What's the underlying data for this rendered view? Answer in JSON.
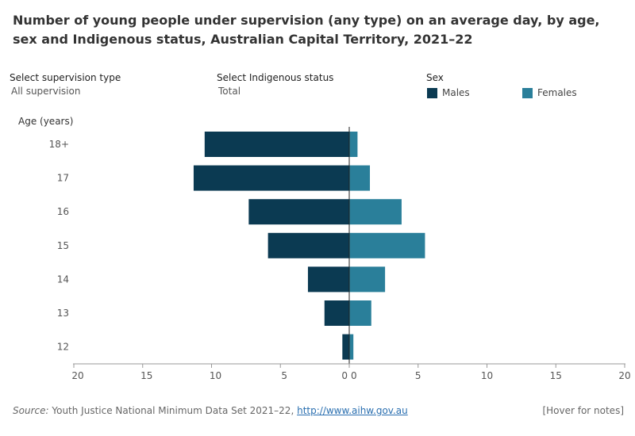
{
  "title": "Number of young people under supervision (any type) on an average day, by age, sex and Indigenous status, Australian Capital Territory, 2021–22",
  "filters": {
    "supervision": {
      "label": "Select supervision type",
      "value": "All supervision"
    },
    "indigenous": {
      "label": "Select Indigenous status",
      "value": "Total"
    }
  },
  "legend": {
    "title": "Sex",
    "items": [
      {
        "name": "Males",
        "color": "#0b3a52"
      },
      {
        "name": "Females",
        "color": "#2a7f9a"
      }
    ]
  },
  "footer": {
    "source_label": "Source:",
    "source_text": "Youth Justice National Minimum Data Set 2021–22,",
    "source_link": "http://www.aihw.gov.au",
    "notes": "[Hover for notes]"
  },
  "chart_data": {
    "type": "bar",
    "orientation": "horizontal-butterfly",
    "ylabel": "Age (years)",
    "categories": [
      "18+",
      "17",
      "16",
      "15",
      "14",
      "13",
      "12"
    ],
    "series": [
      {
        "name": "Males",
        "color": "#0b3a52",
        "values": [
          10.5,
          11.3,
          7.3,
          5.9,
          3.0,
          1.8,
          0.5
        ]
      },
      {
        "name": "Females",
        "color": "#2a7f9a",
        "values": [
          0.6,
          1.5,
          3.8,
          5.5,
          2.6,
          1.6,
          0.3
        ]
      }
    ],
    "left_ticks": [
      "20",
      "15",
      "10",
      "5",
      "0"
    ],
    "right_ticks": [
      "0",
      "5",
      "10",
      "15",
      "20"
    ],
    "xlim": [
      0,
      20
    ]
  }
}
